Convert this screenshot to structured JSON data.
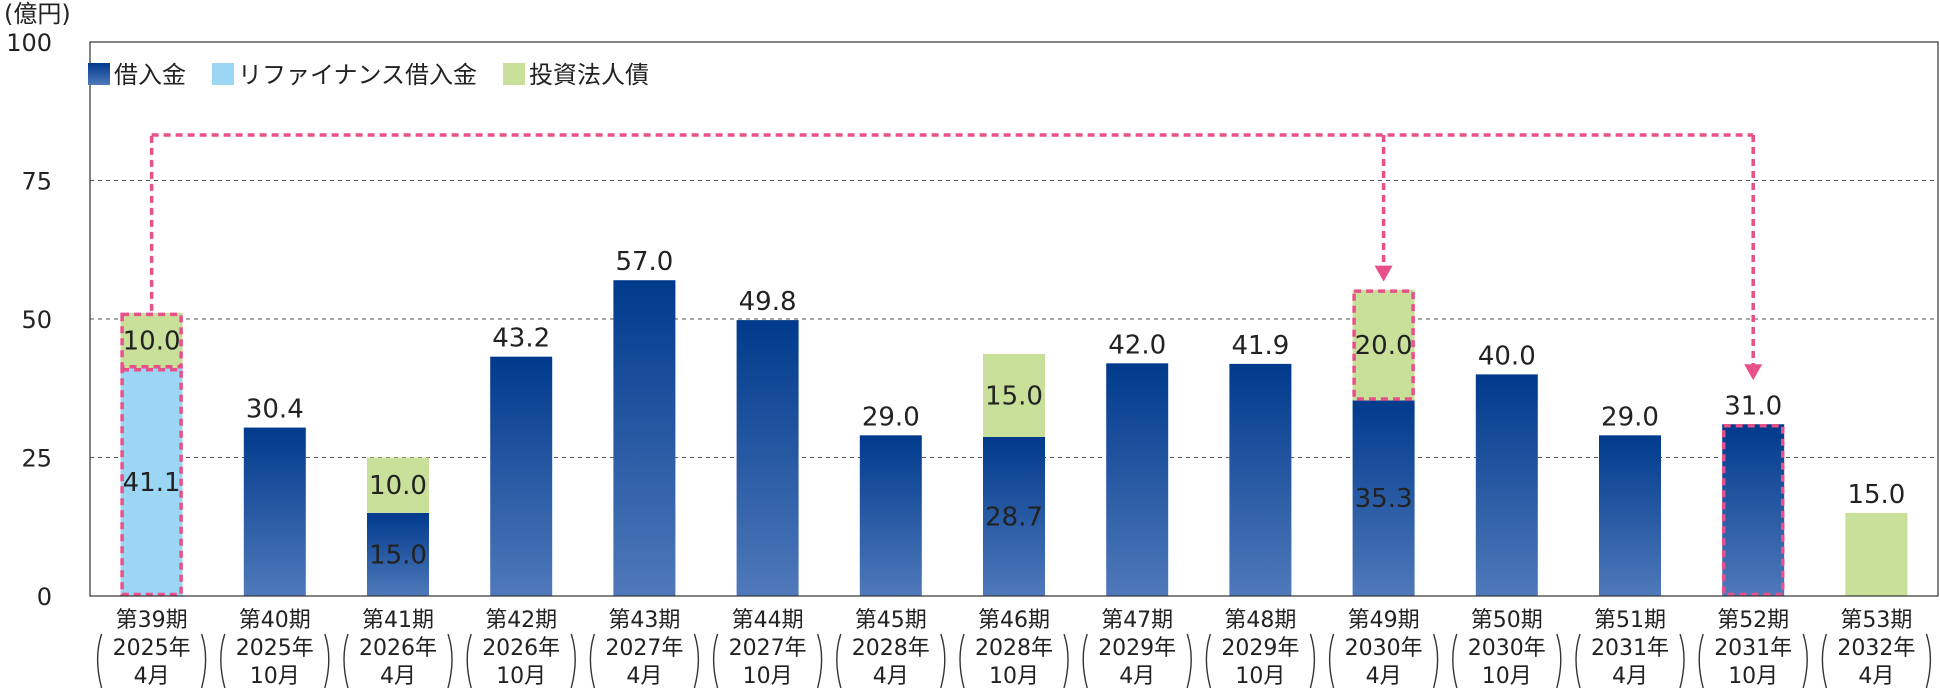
{
  "chart_data": {
    "type": "bar",
    "stacked": true,
    "unit": "(億円)",
    "ylim": [
      0,
      100
    ],
    "yticks": [
      0,
      25,
      50,
      75,
      100
    ],
    "grid": "horizontal-dashed",
    "legend_position": "top-left",
    "categories": [
      [
        "第39期",
        "2025年",
        "4月"
      ],
      [
        "第40期",
        "2025年",
        "10月"
      ],
      [
        "第41期",
        "2026年",
        "4月"
      ],
      [
        "第42期",
        "2026年",
        "10月"
      ],
      [
        "第43期",
        "2027年",
        "4月"
      ],
      [
        "第44期",
        "2027年",
        "10月"
      ],
      [
        "第45期",
        "2028年",
        "4月"
      ],
      [
        "第46期",
        "2028年",
        "10月"
      ],
      [
        "第47期",
        "2029年",
        "4月"
      ],
      [
        "第48期",
        "2029年",
        "10月"
      ],
      [
        "第49期",
        "2030年",
        "4月"
      ],
      [
        "第50期",
        "2030年",
        "10月"
      ],
      [
        "第51期",
        "2031年",
        "4月"
      ],
      [
        "第52期",
        "2031年",
        "10月"
      ],
      [
        "第53期",
        "2032年",
        "4月"
      ]
    ],
    "series": [
      {
        "name": "借入金",
        "values": [
          0,
          30.4,
          15.0,
          43.2,
          57.0,
          49.8,
          29.0,
          28.7,
          42.0,
          41.9,
          35.3,
          40.0,
          29.0,
          31.0,
          0
        ],
        "labels": [
          "",
          "",
          "15.0",
          "",
          "",
          "",
          "",
          "28.7",
          "",
          "",
          "35.3",
          "",
          "",
          "",
          ""
        ]
      },
      {
        "name": "リファイナンス借入金",
        "values": [
          41.1,
          0,
          0,
          0,
          0,
          0,
          0,
          0,
          0,
          0,
          0,
          0,
          0,
          0,
          0
        ],
        "labels": [
          "41.1",
          "",
          "",
          "",
          "",
          "",
          "",
          "",
          "",
          "",
          "",
          "",
          "",
          "",
          ""
        ]
      },
      {
        "name": "投資法人債",
        "values": [
          10.0,
          0,
          10.0,
          0,
          0,
          0,
          0,
          15.0,
          0,
          0,
          20.0,
          0,
          0,
          0,
          15.0
        ],
        "labels": [
          "10.0",
          "",
          "10.0",
          "",
          "",
          "",
          "",
          "15.0",
          "",
          "",
          "20.0",
          "",
          "",
          "",
          ""
        ]
      }
    ],
    "totals": [
      "",
      "30.4",
      "",
      "43.2",
      "57.0",
      "49.8",
      "29.0",
      "",
      "42.0",
      "41.9",
      "",
      "40.0",
      "29.0",
      "31.0",
      "15.0"
    ],
    "colors": {
      "借入金_top": "#003a8c",
      "借入金_bottom": "#4f79ba",
      "リファイナンス借入金": "#9bd6f5",
      "投資法人債": "#c8e09a",
      "highlight": "#e8508a",
      "grid": "#555555",
      "text": "#222222"
    },
    "annotations": {
      "highlight_segments": [
        {
          "category": 0,
          "series": "リファイナンス借入金"
        },
        {
          "category": 0,
          "series": "投資法人債"
        },
        {
          "category": 10,
          "series": "投資法人債"
        },
        {
          "category": 13,
          "series": "借入金"
        }
      ],
      "highlight_labels": [
        {
          "category": 0,
          "series": "投資法人債"
        },
        {
          "category": 0,
          "series": "リファイナンス借入金"
        },
        {
          "category": 10,
          "series": "投資法人債"
        },
        {
          "category": 13,
          "series": "total"
        }
      ],
      "arrows": [
        {
          "from": 0,
          "to": 10
        },
        {
          "from": 0,
          "to": 13
        }
      ]
    }
  }
}
